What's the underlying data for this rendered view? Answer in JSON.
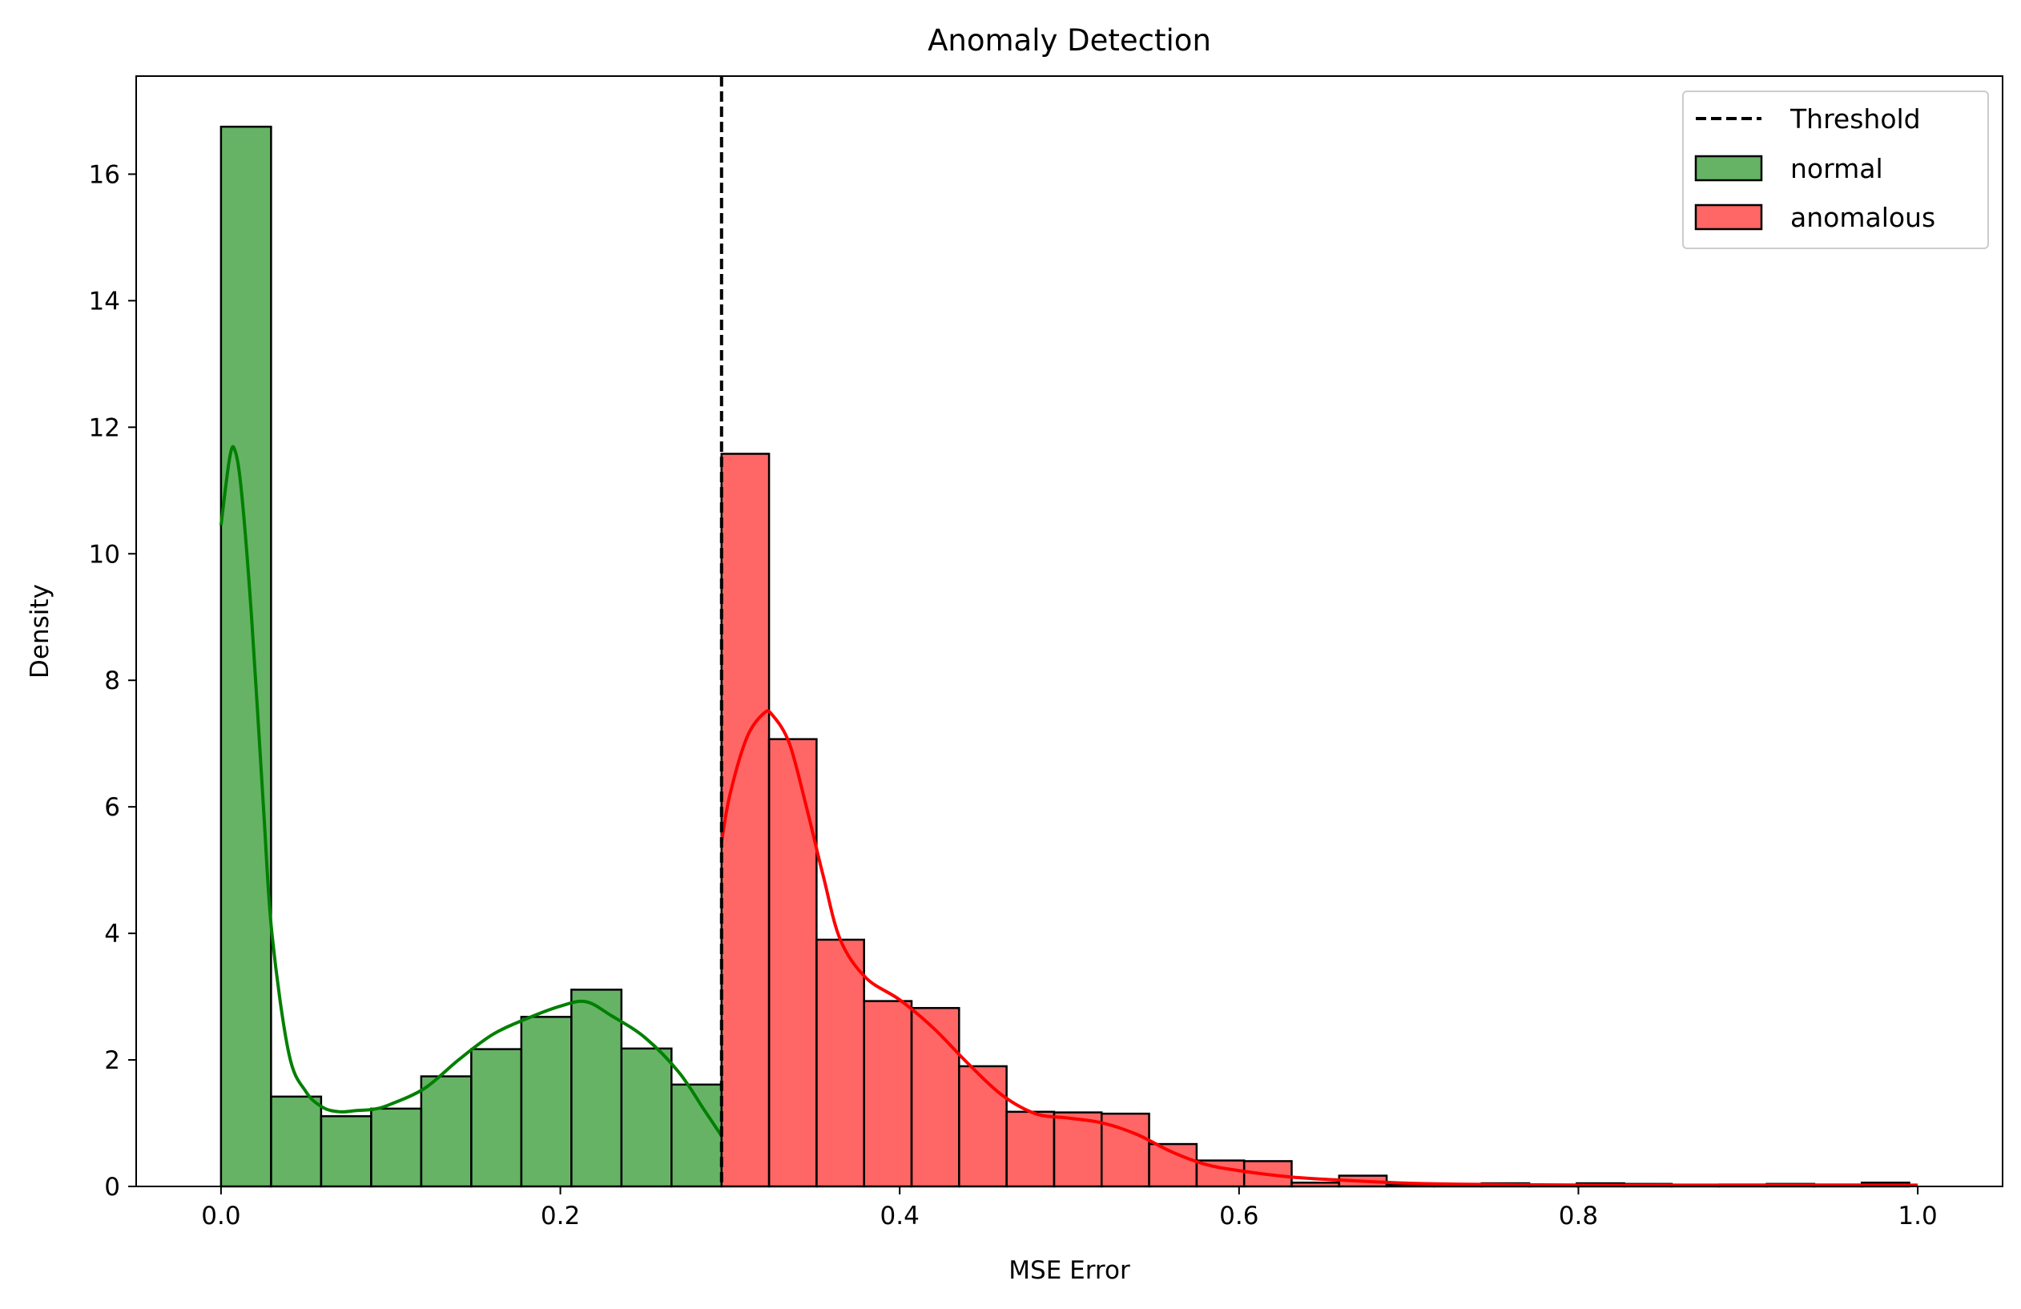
{
  "chart_data": {
    "type": "bar",
    "title": "Anomaly Detection",
    "xlabel": "MSE Error",
    "ylabel": "Density",
    "xlim": [
      -0.05,
      1.05
    ],
    "ylim": [
      0,
      17.55
    ],
    "xticks": [
      0.0,
      0.2,
      0.4,
      0.6,
      0.8,
      1.0
    ],
    "xtick_labels": [
      "0.0",
      "0.2",
      "0.4",
      "0.6",
      "0.8",
      "1.0"
    ],
    "yticks": [
      0,
      2,
      4,
      6,
      8,
      10,
      12,
      14,
      16
    ],
    "ytick_labels": [
      "0",
      "2",
      "4",
      "6",
      "8",
      "10",
      "12",
      "14",
      "16"
    ],
    "grid": false,
    "legend_position": "top-right",
    "threshold": {
      "name": "Threshold",
      "x": 0.295,
      "style": "dashed",
      "color": "#000000"
    },
    "series": [
      {
        "name": "normal",
        "color": "#008000",
        "bin_edges": [
          0.0,
          0.0295,
          0.059,
          0.0885,
          0.118,
          0.1475,
          0.177,
          0.2065,
          0.236,
          0.2655,
          0.295
        ],
        "values": [
          16.75,
          1.42,
          1.11,
          1.23,
          1.74,
          2.17,
          2.68,
          3.11,
          2.18,
          1.61
        ],
        "kde": {
          "x": [
            0.0,
            0.005,
            0.008,
            0.012,
            0.018,
            0.025,
            0.03,
            0.04,
            0.05,
            0.06,
            0.07,
            0.08,
            0.09,
            0.1,
            0.12,
            0.14,
            0.16,
            0.18,
            0.2,
            0.215,
            0.23,
            0.25,
            0.27,
            0.285,
            0.295
          ],
          "y": [
            10.45,
            11.5,
            11.65,
            11.0,
            9.0,
            6.0,
            4.0,
            2.1,
            1.5,
            1.25,
            1.18,
            1.2,
            1.22,
            1.3,
            1.55,
            2.0,
            2.4,
            2.65,
            2.85,
            2.92,
            2.7,
            2.35,
            1.8,
            1.2,
            0.8
          ]
        }
      },
      {
        "name": "anomalous",
        "color": "#ff0000",
        "bin_edges": [
          0.295,
          0.323,
          0.351,
          0.379,
          0.407,
          0.435,
          0.463,
          0.491,
          0.519,
          0.547,
          0.575,
          0.603,
          0.631,
          0.659,
          0.687,
          0.715,
          0.743,
          0.771,
          0.799,
          0.827,
          0.855,
          0.883,
          0.911,
          0.939,
          0.967,
          0.995
        ],
        "values": [
          11.58,
          7.07,
          3.9,
          2.93,
          2.82,
          1.9,
          1.18,
          1.17,
          1.15,
          0.67,
          0.41,
          0.4,
          0.06,
          0.17,
          0.03,
          0.02,
          0.05,
          0.03,
          0.05,
          0.04,
          0.02,
          0.03,
          0.04,
          0.03,
          0.06
        ],
        "kde": {
          "x": [
            0.295,
            0.3,
            0.31,
            0.32,
            0.325,
            0.335,
            0.345,
            0.355,
            0.365,
            0.38,
            0.4,
            0.42,
            0.44,
            0.46,
            0.48,
            0.5,
            0.52,
            0.54,
            0.56,
            0.58,
            0.6,
            0.63,
            0.66,
            0.7,
            0.75,
            0.8,
            0.85,
            0.9,
            0.95,
            1.0
          ],
          "y": [
            5.45,
            6.2,
            7.1,
            7.48,
            7.45,
            7.0,
            6.0,
            4.9,
            3.9,
            3.3,
            2.95,
            2.5,
            1.95,
            1.45,
            1.15,
            1.08,
            1.0,
            0.82,
            0.55,
            0.35,
            0.25,
            0.15,
            0.1,
            0.05,
            0.03,
            0.02,
            0.02,
            0.02,
            0.02,
            0.02
          ]
        }
      }
    ]
  }
}
